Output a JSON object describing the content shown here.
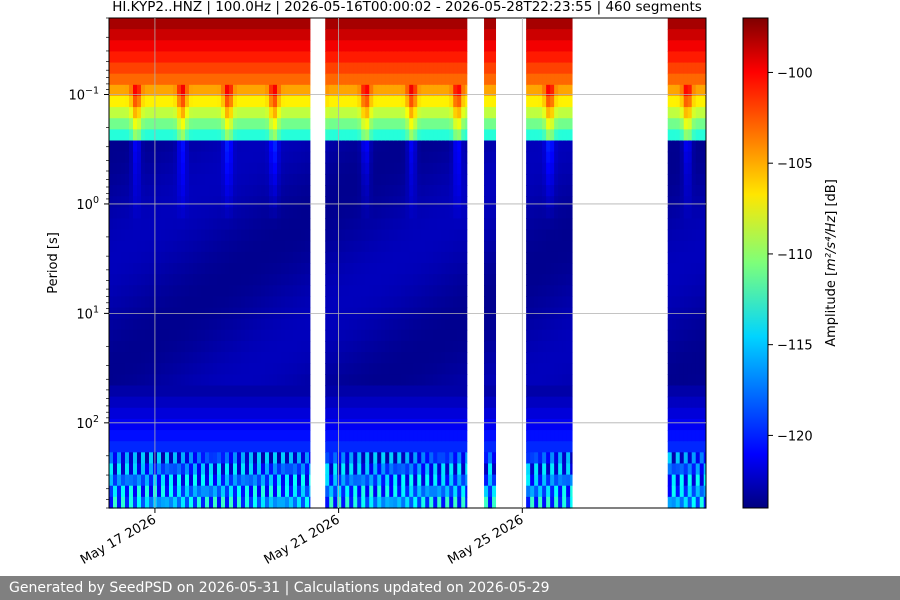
{
  "chart_data": {
    "type": "heatmap",
    "title": "HI.KYP2..HNZ | 100.0Hz | 2026-05-16T00:00:02 - 2026-05-28T22:23:55 | 460 segments",
    "xlabel": "",
    "ylabel": "Period [s]",
    "x_tick_labels": [
      "May 17 2026",
      "May 21 2026",
      "May 25 2026"
    ],
    "y_tick_labels": [
      {
        "base": "10",
        "exp": "−1",
        "value": 0.1
      },
      {
        "base": "10",
        "exp": "0",
        "value": 1
      },
      {
        "base": "10",
        "exp": "1",
        "value": 10
      },
      {
        "base": "10",
        "exp": "2",
        "value": 100
      }
    ],
    "y_scale": "log",
    "y_inverted": true,
    "ylim": [
      0.02,
      600
    ],
    "xlim_days": [
      "2026-05-16",
      "2026-05-29"
    ],
    "grid": "horizontal",
    "colorbar": {
      "label_prefix": "Amplitude [",
      "label_math": "m²/s⁴/Hz",
      "label_suffix": "] [dB]",
      "ticks": [
        "−100",
        "−105",
        "−110",
        "−115",
        "−120"
      ],
      "range": [
        -124,
        -97
      ],
      "colormap": "jet"
    },
    "data_segments_days": [
      [
        "2026-05-16T00:00",
        "2026-05-20T09:00"
      ],
      [
        "2026-05-20T17:00",
        "2026-05-23T19:00"
      ],
      [
        "2026-05-24T04:00",
        "2026-05-24T10:00"
      ],
      [
        "2026-05-25T02:00",
        "2026-05-26T02:00"
      ],
      [
        "2026-05-28T04:00",
        "2026-05-29T00:00"
      ]
    ]
  },
  "footer": {
    "text": "Generated by SeedPSD on 2026-05-31 | Calculations updated on 2026-05-29"
  }
}
